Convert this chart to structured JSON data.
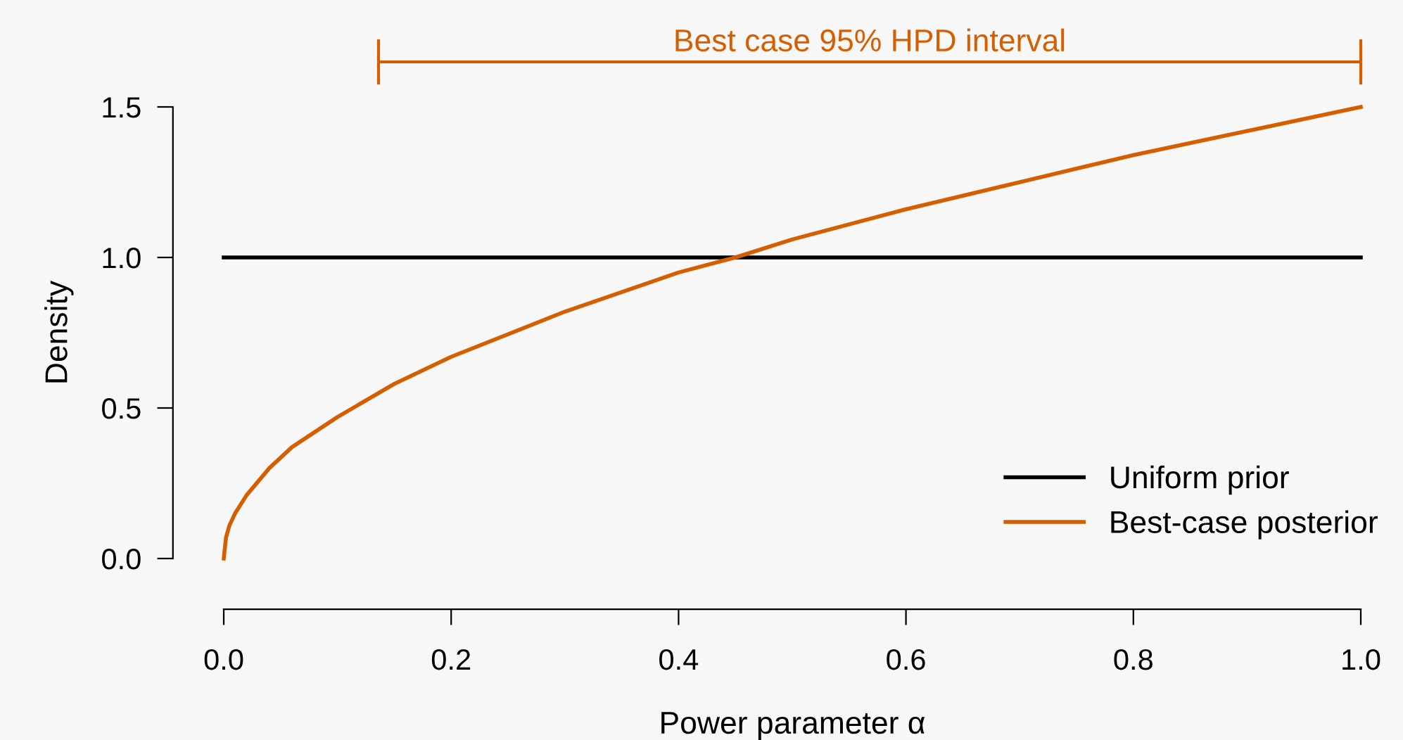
{
  "chart_data": {
    "type": "line",
    "xlabel": "Power parameter α",
    "ylabel": "Density",
    "xlim": [
      0,
      1
    ],
    "ylim": [
      0,
      1.5
    ],
    "xticks": [
      {
        "value": 0,
        "label": "0.0"
      },
      0.2,
      0.4,
      0.6,
      0.8,
      {
        "value": 1,
        "label": "1.0"
      }
    ],
    "yticks": [
      {
        "value": 0,
        "label": "0.0"
      },
      0.5,
      {
        "value": 1,
        "label": "1.0"
      },
      1.5
    ],
    "grid": false,
    "legend": "bottom right",
    "marker": "none",
    "line_style": "solid",
    "series": [
      {
        "name": "Uniform prior",
        "color": "#000000",
        "x": [
          0,
          1
        ],
        "values": [
          1,
          1
        ]
      },
      {
        "name": "Best-case posterior",
        "color": "#d55e00",
        "x": [
          0,
          0.002,
          0.005,
          0.01,
          0.02,
          0.04,
          0.06,
          0.1,
          0.15,
          0.2,
          0.3,
          0.4,
          0.45,
          0.5,
          0.6,
          0.7,
          0.8,
          0.9,
          1.0
        ],
        "values": [
          0,
          0.07,
          0.11,
          0.15,
          0.21,
          0.3,
          0.37,
          0.47,
          0.58,
          0.67,
          0.82,
          0.95,
          1.0,
          1.06,
          1.16,
          1.25,
          1.34,
          1.42,
          1.5
        ]
      }
    ],
    "annotations": [
      "Best case 95% HPD interval"
    ]
  }
}
